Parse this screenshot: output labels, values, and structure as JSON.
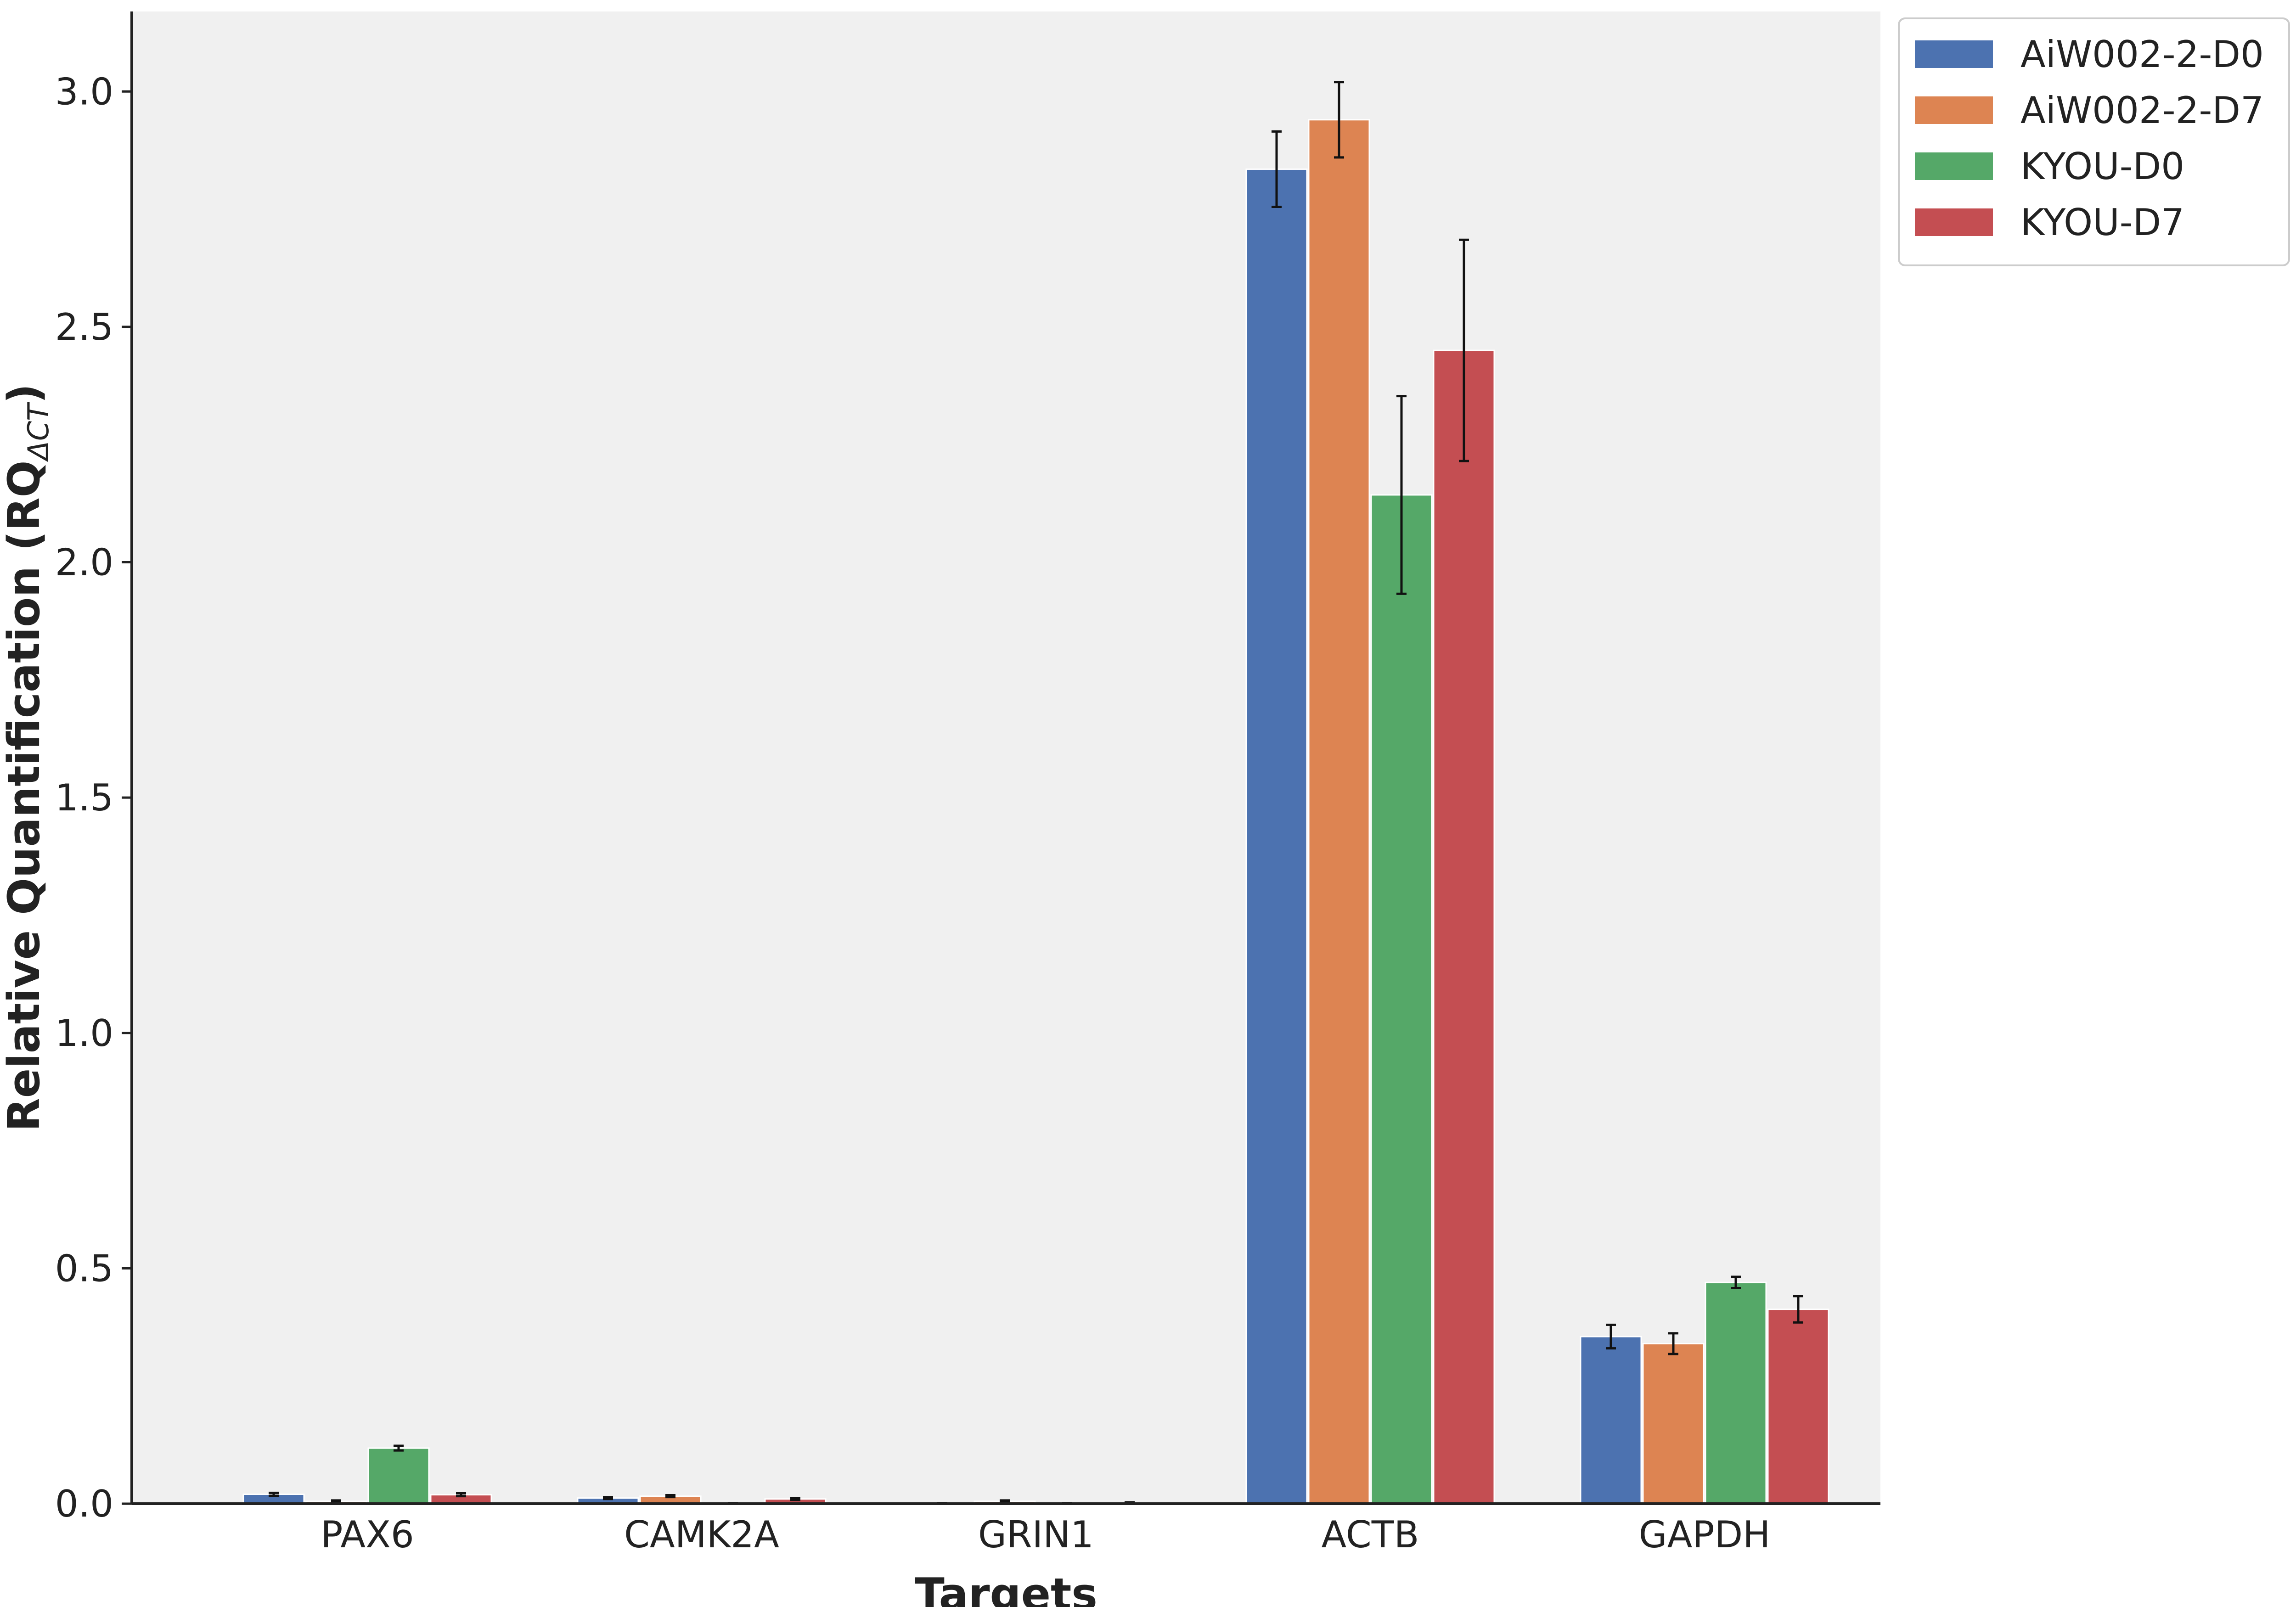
{
  "chart_data": {
    "type": "bar",
    "title": "",
    "xlabel": "Targets",
    "ylabel": "Relative Quantification (RQ",
    "ylabel_subscript": "ΔCT",
    "ylabel_close": ")",
    "categories": [
      "PAX6",
      "CAMK2A",
      "GRIN1",
      "ACTB",
      "GAPDH"
    ],
    "ylim": [
      0,
      3.17
    ],
    "yticks": [
      0.0,
      0.5,
      1.0,
      1.5,
      2.0,
      2.5,
      3.0
    ],
    "ytick_labels": [
      "0.0",
      "0.5",
      "1.0",
      "1.5",
      "2.0",
      "2.5",
      "3.0"
    ],
    "grid": false,
    "legend_position": "top-right outside",
    "series": [
      {
        "name": "AiW002-2-D0",
        "color": "#4c72b0",
        "values": [
          0.02,
          0.012,
          0.001,
          2.835,
          0.355
        ],
        "errors": [
          0.003,
          0.002,
          0.0005,
          0.08,
          0.025
        ]
      },
      {
        "name": "AiW002-2-D7",
        "color": "#dd8452",
        "values": [
          0.005,
          0.016,
          0.005,
          2.94,
          0.34
        ],
        "errors": [
          0.002,
          0.002,
          0.002,
          0.08,
          0.022
        ]
      },
      {
        "name": "KYOU-D0",
        "color": "#55a868",
        "values": [
          0.118,
          0.001,
          0.001,
          2.143,
          0.47
        ],
        "errors": [
          0.005,
          0.0005,
          0.0005,
          0.21,
          0.012
        ]
      },
      {
        "name": "KYOU-D7",
        "color": "#c44e52",
        "values": [
          0.019,
          0.01,
          0.002,
          2.45,
          0.413
        ],
        "errors": [
          0.003,
          0.002,
          0.001,
          0.235,
          0.028
        ]
      }
    ]
  }
}
